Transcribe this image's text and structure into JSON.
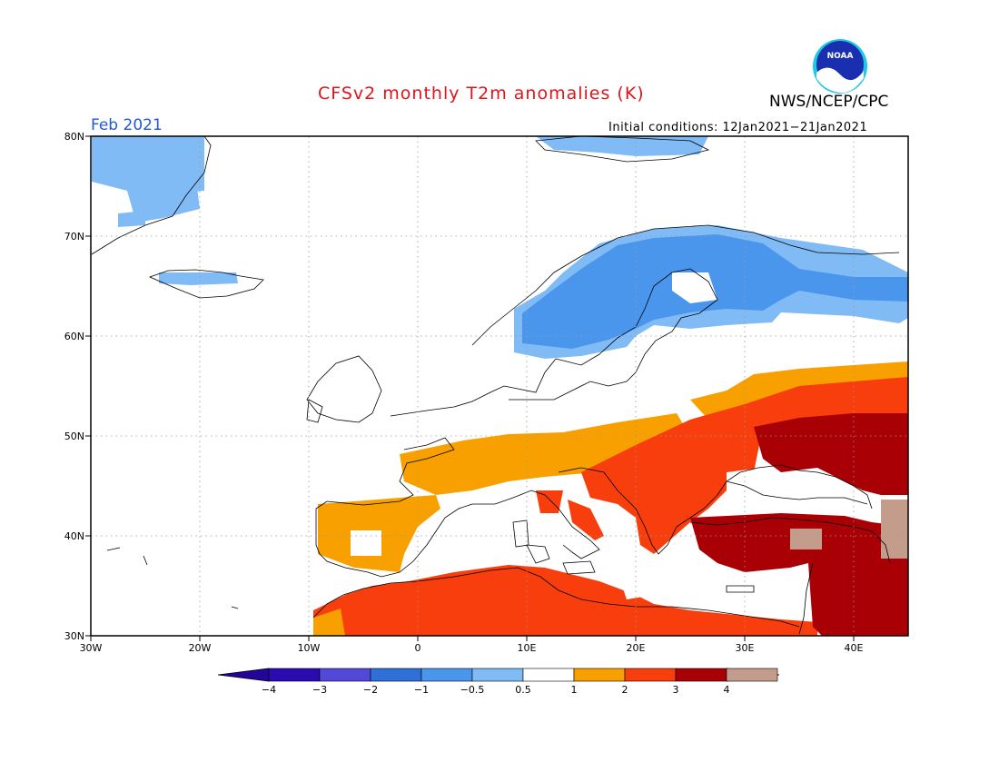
{
  "map": {
    "title": "CFSv2 monthly T2m anomalies (K)",
    "agency": "NWS/NCEP/CPC",
    "logo_text": "NOAA",
    "month": "Feb 2021",
    "initial_conditions": "Initial conditions: 12Jan2021−21Jan2021",
    "lat_labels": [
      "80N",
      "70N",
      "60N",
      "50N",
      "40N",
      "30N"
    ],
    "lon_labels": [
      "30W",
      "20W",
      "10W",
      "0",
      "10E",
      "20E",
      "30E",
      "40E"
    ]
  },
  "colorbar": {
    "tick_labels": [
      "−4",
      "−3",
      "−2",
      "−1",
      "−0.5",
      "0.5",
      "1",
      "2",
      "3",
      "4"
    ],
    "colors": [
      "#2a0bb0",
      "#5448d8",
      "#2f6fd8",
      "#4a96ec",
      "#80bbf5",
      "#ffffff",
      "#f7a000",
      "#f83e0c",
      "#a80004",
      "#c49c8c"
    ],
    "under_color": "#220599",
    "over_color": "#6b4030"
  },
  "anomaly_colors": {
    "light_blue": "#80bbf5",
    "blue": "#4a96ec",
    "orange": "#f7a000",
    "red_orange": "#f83e0c",
    "dark_red": "#a80004",
    "tan": "#c49c8c"
  }
}
